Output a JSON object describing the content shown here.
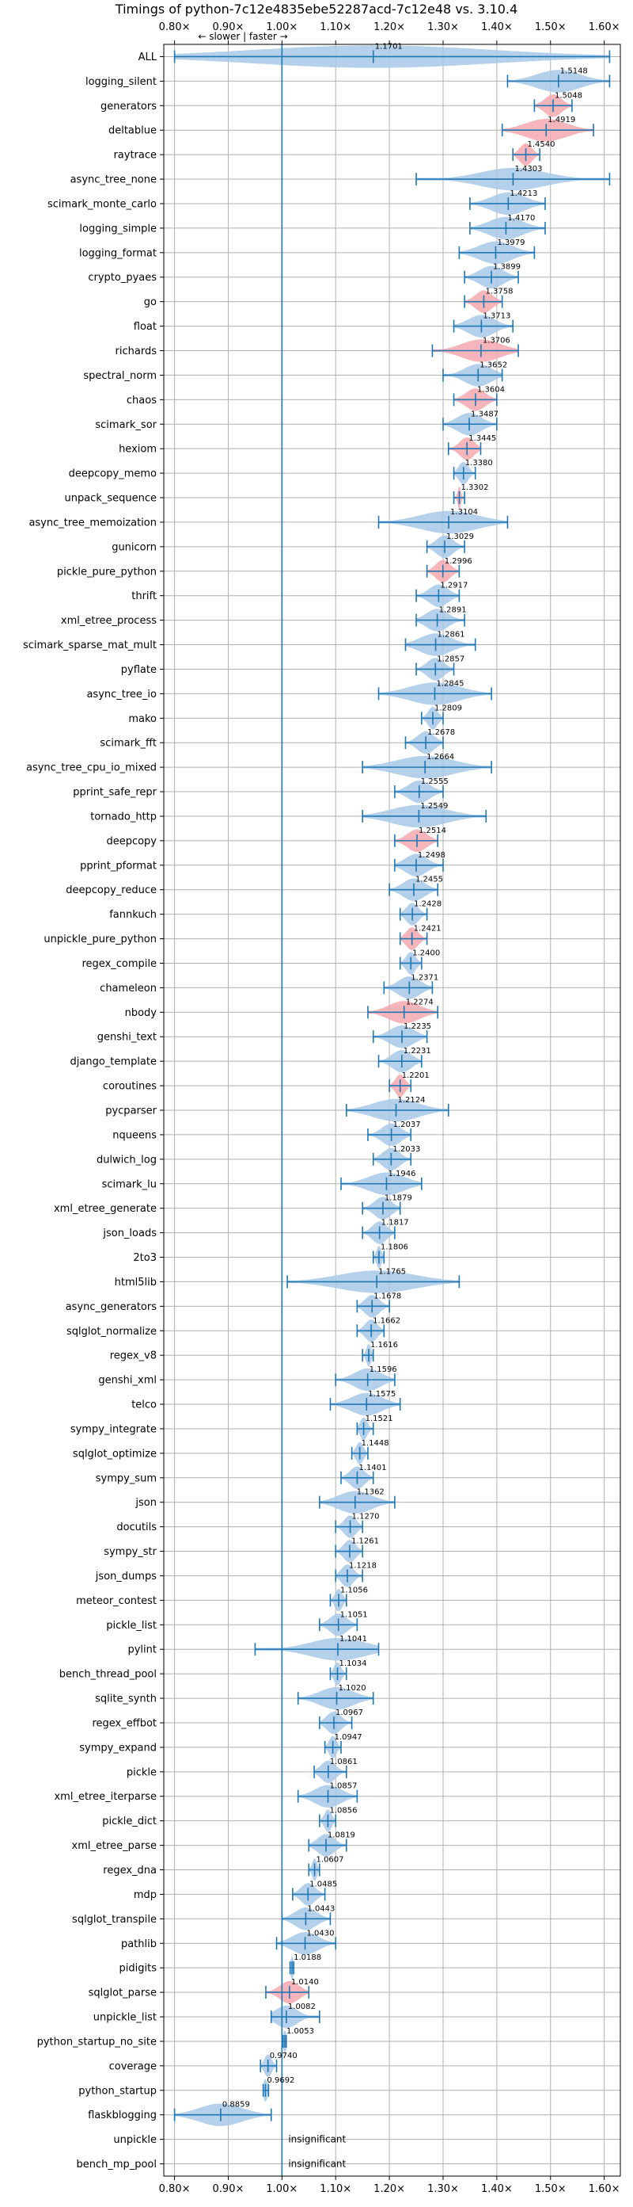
{
  "chart_data": {
    "type": "violin",
    "title": "Timings of python-7c12e4835ebe52287acd-7c12e48 vs. 3.10.4",
    "direction_label": "← slower | faster →",
    "x_ticks": [
      0.8,
      0.9,
      1.0,
      1.1,
      1.2,
      1.3,
      1.4,
      1.5,
      1.6
    ],
    "x_tick_labels": [
      "0.80×",
      "0.90×",
      "1.00×",
      "1.10×",
      "1.20×",
      "1.30×",
      "1.40×",
      "1.50×",
      "1.60×"
    ],
    "xlim": [
      0.78,
      1.63
    ],
    "reference_line": 1.0,
    "grid": true,
    "colors": {
      "normal": "#a8c8e6",
      "flagged": "#f4a8ae",
      "line": "#1f77b4",
      "grid": "#b0b0b0"
    },
    "insignificant_text": "insignificant",
    "benchmarks": [
      {
        "name": "ALL",
        "value": 1.1701,
        "label": "1.1701",
        "min": 0.8,
        "max": 1.61,
        "spread": 0.22
      },
      {
        "name": "logging_silent",
        "value": 1.5148,
        "label": "1.5148",
        "min": 1.42,
        "max": 1.61,
        "spread": 0.04
      },
      {
        "name": "generators",
        "value": 1.5048,
        "label": "1.5048",
        "min": 1.47,
        "max": 1.54,
        "flag": true
      },
      {
        "name": "deltablue",
        "value": 1.4919,
        "label": "1.4919",
        "min": 1.41,
        "max": 1.58,
        "flag": true
      },
      {
        "name": "raytrace",
        "value": 1.454,
        "label": "1.4540",
        "min": 1.43,
        "max": 1.48,
        "flag": true
      },
      {
        "name": "async_tree_none",
        "value": 1.4303,
        "label": "1.4303",
        "min": 1.25,
        "max": 1.61,
        "spread": 0.06
      },
      {
        "name": "scimark_monte_carlo",
        "value": 1.4213,
        "label": "1.4213",
        "min": 1.35,
        "max": 1.49
      },
      {
        "name": "logging_simple",
        "value": 1.417,
        "label": "1.4170",
        "min": 1.35,
        "max": 1.49
      },
      {
        "name": "logging_format",
        "value": 1.3979,
        "label": "1.3979",
        "min": 1.33,
        "max": 1.47
      },
      {
        "name": "crypto_pyaes",
        "value": 1.3899,
        "label": "1.3899",
        "min": 1.34,
        "max": 1.44
      },
      {
        "name": "go",
        "value": 1.3758,
        "label": "1.3758",
        "min": 1.34,
        "max": 1.41,
        "flag": true
      },
      {
        "name": "float",
        "value": 1.3713,
        "label": "1.3713",
        "min": 1.32,
        "max": 1.43
      },
      {
        "name": "richards",
        "value": 1.3706,
        "label": "1.3706",
        "min": 1.28,
        "max": 1.44,
        "flag": true
      },
      {
        "name": "spectral_norm",
        "value": 1.3652,
        "label": "1.3652",
        "min": 1.3,
        "max": 1.41
      },
      {
        "name": "chaos",
        "value": 1.3604,
        "label": "1.3604",
        "min": 1.32,
        "max": 1.4,
        "flag": true
      },
      {
        "name": "scimark_sor",
        "value": 1.3487,
        "label": "1.3487",
        "min": 1.3,
        "max": 1.4
      },
      {
        "name": "hexiom",
        "value": 1.3445,
        "label": "1.3445",
        "min": 1.31,
        "max": 1.37,
        "flag": true
      },
      {
        "name": "deepcopy_memo",
        "value": 1.338,
        "label": "1.3380",
        "min": 1.32,
        "max": 1.36
      },
      {
        "name": "unpack_sequence",
        "value": 1.3302,
        "label": "1.3302",
        "min": 1.32,
        "max": 1.34,
        "flag": true,
        "spread": 0.003
      },
      {
        "name": "async_tree_memoization",
        "value": 1.3104,
        "label": "1.3104",
        "min": 1.18,
        "max": 1.42
      },
      {
        "name": "gunicorn",
        "value": 1.3029,
        "label": "1.3029",
        "min": 1.27,
        "max": 1.34
      },
      {
        "name": "pickle_pure_python",
        "value": 1.2996,
        "label": "1.2996",
        "min": 1.27,
        "max": 1.33,
        "flag": true
      },
      {
        "name": "thrift",
        "value": 1.2917,
        "label": "1.2917",
        "min": 1.25,
        "max": 1.33
      },
      {
        "name": "xml_etree_process",
        "value": 1.2891,
        "label": "1.2891",
        "min": 1.25,
        "max": 1.34
      },
      {
        "name": "scimark_sparse_mat_mult",
        "value": 1.2861,
        "label": "1.2861",
        "min": 1.23,
        "max": 1.36
      },
      {
        "name": "pyflate",
        "value": 1.2857,
        "label": "1.2857",
        "min": 1.25,
        "max": 1.32
      },
      {
        "name": "async_tree_io",
        "value": 1.2845,
        "label": "1.2845",
        "min": 1.18,
        "max": 1.39
      },
      {
        "name": "mako",
        "value": 1.2809,
        "label": "1.2809",
        "min": 1.26,
        "max": 1.3
      },
      {
        "name": "scimark_fft",
        "value": 1.2678,
        "label": "1.2678",
        "min": 1.23,
        "max": 1.3
      },
      {
        "name": "async_tree_cpu_io_mixed",
        "value": 1.2664,
        "label": "1.2664",
        "min": 1.15,
        "max": 1.39
      },
      {
        "name": "pprint_safe_repr",
        "value": 1.2555,
        "label": "1.2555",
        "min": 1.21,
        "max": 1.3
      },
      {
        "name": "tornado_http",
        "value": 1.2549,
        "label": "1.2549",
        "min": 1.15,
        "max": 1.38
      },
      {
        "name": "deepcopy",
        "value": 1.2514,
        "label": "1.2514",
        "min": 1.21,
        "max": 1.29,
        "flag": true
      },
      {
        "name": "pprint_pformat",
        "value": 1.2498,
        "label": "1.2498",
        "min": 1.21,
        "max": 1.3
      },
      {
        "name": "deepcopy_reduce",
        "value": 1.2455,
        "label": "1.2455",
        "min": 1.2,
        "max": 1.29
      },
      {
        "name": "fannkuch",
        "value": 1.2428,
        "label": "1.2428",
        "min": 1.22,
        "max": 1.27
      },
      {
        "name": "unpickle_pure_python",
        "value": 1.2421,
        "label": "1.2421",
        "min": 1.22,
        "max": 1.27,
        "flag": true
      },
      {
        "name": "regex_compile",
        "value": 1.24,
        "label": "1.2400",
        "min": 1.22,
        "max": 1.26
      },
      {
        "name": "chameleon",
        "value": 1.2371,
        "label": "1.2371",
        "min": 1.19,
        "max": 1.28
      },
      {
        "name": "nbody",
        "value": 1.2274,
        "label": "1.2274",
        "min": 1.16,
        "max": 1.29,
        "flag": true
      },
      {
        "name": "genshi_text",
        "value": 1.2235,
        "label": "1.2235",
        "min": 1.17,
        "max": 1.27
      },
      {
        "name": "django_template",
        "value": 1.2231,
        "label": "1.2231",
        "min": 1.18,
        "max": 1.26
      },
      {
        "name": "coroutines",
        "value": 1.2201,
        "label": "1.2201",
        "min": 1.2,
        "max": 1.24,
        "flag": true
      },
      {
        "name": "pycparser",
        "value": 1.2124,
        "label": "1.2124",
        "min": 1.12,
        "max": 1.31
      },
      {
        "name": "nqueens",
        "value": 1.2037,
        "label": "1.2037",
        "min": 1.16,
        "max": 1.24
      },
      {
        "name": "dulwich_log",
        "value": 1.2033,
        "label": "1.2033",
        "min": 1.17,
        "max": 1.24
      },
      {
        "name": "scimark_lu",
        "value": 1.1946,
        "label": "1.1946",
        "min": 1.11,
        "max": 1.26
      },
      {
        "name": "xml_etree_generate",
        "value": 1.1879,
        "label": "1.1879",
        "min": 1.15,
        "max": 1.22
      },
      {
        "name": "json_loads",
        "value": 1.1817,
        "label": "1.1817",
        "min": 1.15,
        "max": 1.21
      },
      {
        "name": "2to3",
        "value": 1.1806,
        "label": "1.1806",
        "min": 1.17,
        "max": 1.19
      },
      {
        "name": "html5lib",
        "value": 1.1765,
        "label": "1.1765",
        "min": 1.01,
        "max": 1.33
      },
      {
        "name": "async_generators",
        "value": 1.1678,
        "label": "1.1678",
        "min": 1.14,
        "max": 1.2
      },
      {
        "name": "sqlglot_normalize",
        "value": 1.1662,
        "label": "1.1662",
        "min": 1.14,
        "max": 1.19
      },
      {
        "name": "regex_v8",
        "value": 1.1616,
        "label": "1.1616",
        "min": 1.15,
        "max": 1.17
      },
      {
        "name": "genshi_xml",
        "value": 1.1596,
        "label": "1.1596",
        "min": 1.1,
        "max": 1.21
      },
      {
        "name": "telco",
        "value": 1.1575,
        "label": "1.1575",
        "min": 1.09,
        "max": 1.22
      },
      {
        "name": "sympy_integrate",
        "value": 1.1521,
        "label": "1.1521",
        "min": 1.14,
        "max": 1.17
      },
      {
        "name": "sqlglot_optimize",
        "value": 1.1448,
        "label": "1.1448",
        "min": 1.13,
        "max": 1.16
      },
      {
        "name": "sympy_sum",
        "value": 1.1401,
        "label": "1.1401",
        "min": 1.11,
        "max": 1.17
      },
      {
        "name": "json",
        "value": 1.1362,
        "label": "1.1362",
        "min": 1.07,
        "max": 1.21
      },
      {
        "name": "docutils",
        "value": 1.127,
        "label": "1.1270",
        "min": 1.1,
        "max": 1.15
      },
      {
        "name": "sympy_str",
        "value": 1.1261,
        "label": "1.1261",
        "min": 1.1,
        "max": 1.15
      },
      {
        "name": "json_dumps",
        "value": 1.1218,
        "label": "1.1218",
        "min": 1.1,
        "max": 1.15
      },
      {
        "name": "meteor_contest",
        "value": 1.1056,
        "label": "1.1056",
        "min": 1.09,
        "max": 1.12
      },
      {
        "name": "pickle_list",
        "value": 1.1051,
        "label": "1.1051",
        "min": 1.07,
        "max": 1.14
      },
      {
        "name": "pylint",
        "value": 1.1041,
        "label": "1.1041",
        "min": 0.95,
        "max": 1.18
      },
      {
        "name": "bench_thread_pool",
        "value": 1.1034,
        "label": "1.1034",
        "min": 1.09,
        "max": 1.12
      },
      {
        "name": "sqlite_synth",
        "value": 1.102,
        "label": "1.1020",
        "min": 1.03,
        "max": 1.17
      },
      {
        "name": "regex_effbot",
        "value": 1.0967,
        "label": "1.0967",
        "min": 1.07,
        "max": 1.13
      },
      {
        "name": "sympy_expand",
        "value": 1.0947,
        "label": "1.0947",
        "min": 1.08,
        "max": 1.11
      },
      {
        "name": "pickle",
        "value": 1.0861,
        "label": "1.0861",
        "min": 1.06,
        "max": 1.12
      },
      {
        "name": "xml_etree_iterparse",
        "value": 1.0857,
        "label": "1.0857",
        "min": 1.03,
        "max": 1.14
      },
      {
        "name": "pickle_dict",
        "value": 1.0856,
        "label": "1.0856",
        "min": 1.07,
        "max": 1.1
      },
      {
        "name": "xml_etree_parse",
        "value": 1.0819,
        "label": "1.0819",
        "min": 1.05,
        "max": 1.12
      },
      {
        "name": "regex_dna",
        "value": 1.0607,
        "label": "1.0607",
        "min": 1.05,
        "max": 1.07
      },
      {
        "name": "mdp",
        "value": 1.0485,
        "label": "1.0485",
        "min": 1.02,
        "max": 1.08
      },
      {
        "name": "sqlglot_transpile",
        "value": 1.0443,
        "label": "1.0443",
        "min": 1.0,
        "max": 1.09
      },
      {
        "name": "pathlib",
        "value": 1.043,
        "label": "1.0430",
        "min": 0.99,
        "max": 1.1
      },
      {
        "name": "pidigits",
        "value": 1.0188,
        "label": "1.0188",
        "min": 1.015,
        "max": 1.022,
        "spread": 0.003
      },
      {
        "name": "sqlglot_parse",
        "value": 1.014,
        "label": "1.0140",
        "min": 0.97,
        "max": 1.05,
        "flag": true
      },
      {
        "name": "unpickle_list",
        "value": 1.0082,
        "label": "1.0082",
        "min": 0.98,
        "max": 1.07
      },
      {
        "name": "python_startup_no_site",
        "value": 1.0053,
        "label": "1.0053",
        "min": 1.002,
        "max": 1.008,
        "spread": 0.003
      },
      {
        "name": "coverage",
        "value": 0.974,
        "label": "0.9740",
        "min": 0.96,
        "max": 0.99
      },
      {
        "name": "python_startup",
        "value": 0.9692,
        "label": "0.9692",
        "min": 0.965,
        "max": 0.975,
        "spread": 0.004
      },
      {
        "name": "flaskblogging",
        "value": 0.8859,
        "label": "0.8859",
        "min": 0.8,
        "max": 0.98
      },
      {
        "name": "unpickle",
        "value": null,
        "insignificant": true
      },
      {
        "name": "bench_mp_pool",
        "value": null,
        "insignificant": true
      }
    ]
  }
}
